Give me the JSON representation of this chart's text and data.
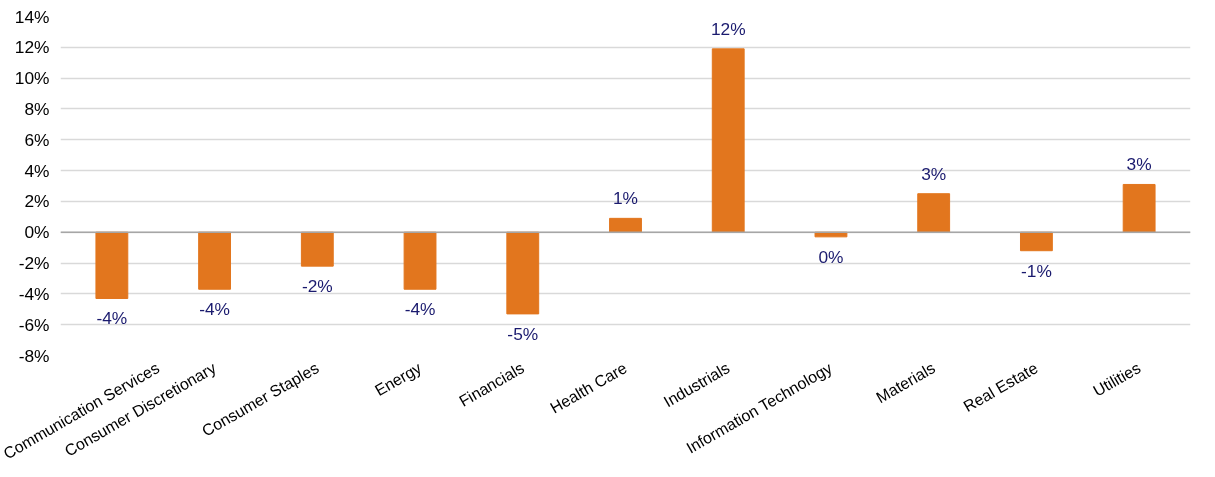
{
  "chart_data": {
    "type": "bar",
    "categories": [
      "Communication Services",
      "Consumer Discretionary",
      "Consumer Staples",
      "Energy",
      "Financials",
      "Health Care",
      "Industrials",
      "Information Technology",
      "Materials",
      "Real Estate",
      "Utilities"
    ],
    "values": [
      -4.3,
      -3.7,
      -2.2,
      -3.7,
      -5.3,
      0.9,
      11.9,
      -0.3,
      2.5,
      -1.2,
      3.1
    ],
    "value_labels": [
      "-4%",
      "-4%",
      "-2%",
      "-4%",
      "-5%",
      "1%",
      "12%",
      "0%",
      "3%",
      "-1%",
      "3%"
    ],
    "color": "#e2761e",
    "ylim": [
      -8,
      14
    ],
    "yticks": [
      {
        "value": -8,
        "label": "-8%"
      },
      {
        "value": -6,
        "label": "-6%"
      },
      {
        "value": -4,
        "label": "-4%"
      },
      {
        "value": -2,
        "label": "-2%"
      },
      {
        "value": 0,
        "label": "0%"
      },
      {
        "value": 2,
        "label": "2%"
      },
      {
        "value": 4,
        "label": "4%"
      },
      {
        "value": 6,
        "label": "6%"
      },
      {
        "value": 8,
        "label": "8%"
      },
      {
        "value": 10,
        "label": "10%"
      },
      {
        "value": 12,
        "label": "12%"
      },
      {
        "value": 14,
        "label": "14%"
      }
    ],
    "grid": "y"
  }
}
